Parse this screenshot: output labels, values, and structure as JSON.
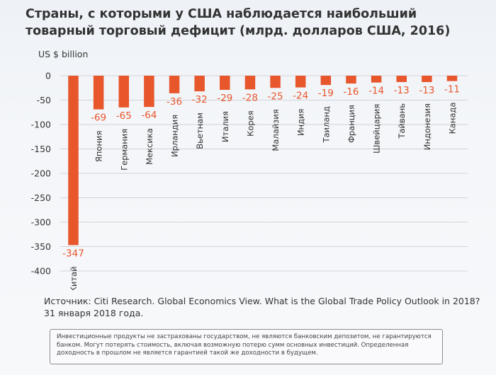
{
  "title": "Страны, с которыми у США наблюдается наибольший товарный торговый дефицит (млрд. долларов США, 2016)",
  "unit_label": "US $ billion",
  "source": "Источник: Citi Research. Global Economics View. What is the Global Trade Policy Outlook in 2018? 31 января 2018 года.",
  "disclaimer": "Инвестиционные продукты не застрахованы государством, не являются банковским депозитом, не гарантируются банком. Могут потерять стоимость, включая возможную потерю сумм основных инвестиций. Определенная доходность в прошлом не является гарантией такой же доходности в будущем.",
  "colors": {
    "bar": "#e8562c",
    "label": "#e8562c",
    "grid": "#d0d3d8",
    "text": "#333333"
  },
  "chart_data": {
    "type": "bar",
    "title": "Страны, с которыми у США наблюдается наибольший товарный торговый дефицит (млрд. долларов США, 2016)",
    "ylabel": "US $ billion",
    "xlabel": "",
    "ylim": [
      -400,
      0
    ],
    "yticks": [
      0,
      -50,
      -100,
      -150,
      -200,
      -250,
      -300,
      -350,
      -400
    ],
    "grid": true,
    "categories": [
      "Китай",
      "Япония",
      "Германия",
      "Мексика",
      "Ирландия",
      "Вьетнам",
      "Италия",
      "Корея",
      "Малайзия",
      "Индия",
      "Таиланд",
      "Франция",
      "Швейцария",
      "Тайвань",
      "Индонезия",
      "Канада"
    ],
    "values": [
      -347,
      -69,
      -65,
      -64,
      -36,
      -32,
      -29,
      -28,
      -25,
      -24,
      -19,
      -16,
      -14,
      -13,
      -13,
      -11
    ]
  }
}
